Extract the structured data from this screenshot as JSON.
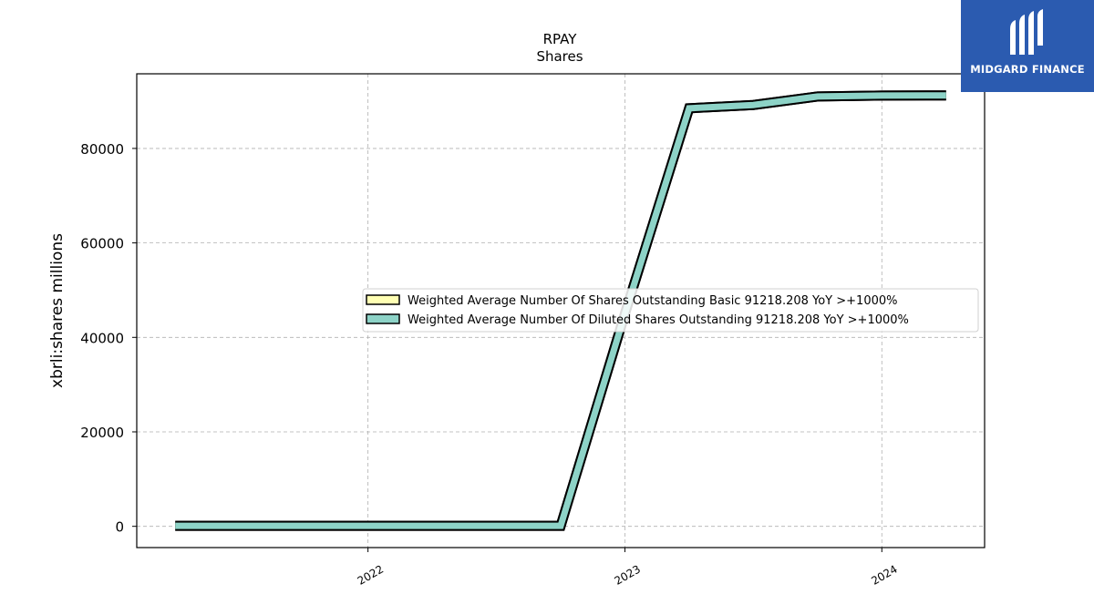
{
  "brand": {
    "name": "MIDGARD FINANCE",
    "bg": "#2b5bb0"
  },
  "chart_data": {
    "type": "line",
    "title": "RPAY",
    "subtitle": "Shares",
    "ylabel": "xbrli:shares millions",
    "xlabel": "",
    "x_ticks": [
      "2022",
      "2023",
      "2024"
    ],
    "y_ticks": [
      0,
      20000,
      40000,
      60000,
      80000
    ],
    "ylim": [
      -4500,
      95800
    ],
    "xlim": [
      2021.1,
      2024.4
    ],
    "grid": true,
    "legend_position": "center-right",
    "x": [
      2021.25,
      2022.0,
      2022.25,
      2022.5,
      2022.75,
      2023.0,
      2023.25,
      2023.5,
      2023.75,
      2024.0,
      2024.25
    ],
    "series": [
      {
        "name": "Weighted Average Number Of Shares Outstanding Basic  91218.208 YoY >+1000%",
        "color": "#ffffb3",
        "values": [
          100,
          100,
          100,
          100,
          100,
          45000,
          88500,
          89200,
          91000,
          91200,
          91218.208
        ]
      },
      {
        "name": "Weighted Average Number Of Diluted Shares Outstanding  91218.208 YoY >+1000%",
        "color": "#8dd3c7",
        "values": [
          100,
          100,
          100,
          100,
          100,
          45000,
          88500,
          89200,
          91000,
          91200,
          91218.208
        ]
      }
    ]
  }
}
